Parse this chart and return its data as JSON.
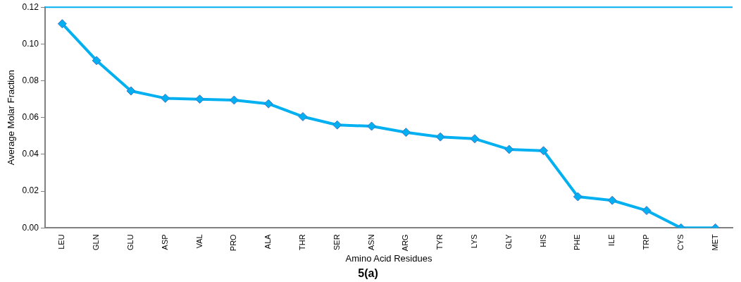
{
  "chart_data": {
    "type": "line",
    "title": "5(a)",
    "xlabel": "Amino Acid Residues",
    "ylabel": "Average Molar Fraction",
    "categories": [
      "LEU",
      "GLN",
      "GLU",
      "ASP",
      "VAL",
      "PRO",
      "ALA",
      "THR",
      "SER",
      "ASN",
      "ARG",
      "TYR",
      "LYS",
      "GLY",
      "HIS",
      "PHE",
      "ILE",
      "TRP",
      "CYS",
      "MET"
    ],
    "series": [
      {
        "color": "#00b0f0",
        "values": [
          0.111,
          0.091,
          0.0745,
          0.0705,
          0.07,
          0.0695,
          0.0675,
          0.0605,
          0.056,
          0.0553,
          0.052,
          0.0495,
          0.0485,
          0.0427,
          0.042,
          0.017,
          0.015,
          0.0095,
          0,
          0
        ]
      }
    ],
    "ylim": [
      0,
      0.12
    ],
    "yticks": [
      {
        "value": 0,
        "label": "0.00"
      },
      {
        "value": 0.02,
        "label": "0.02"
      },
      {
        "value": 0.04,
        "label": "0.04"
      },
      {
        "value": 0.06,
        "label": "0.06"
      },
      {
        "value": 0.08,
        "label": "0.08"
      },
      {
        "value": 0.1,
        "label": "0.10"
      },
      {
        "value": 0.12,
        "label": "0.12"
      }
    ],
    "ref_lines": [
      {
        "axis": "y",
        "value": 0.12,
        "color": "#00b0f0"
      }
    ],
    "marker": "diamond",
    "grid": false,
    "legend": false
  }
}
